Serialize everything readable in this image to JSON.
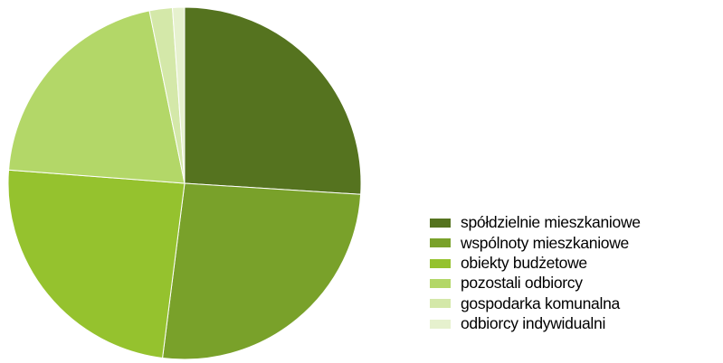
{
  "chart_data": {
    "type": "pie",
    "title": "",
    "legend_position": "right",
    "start_angle_deg": 0,
    "direction": "clockwise",
    "slices": [
      {
        "label": "spółdzielnie mieszkaniowe",
        "value": 26.0,
        "color": "#55731f"
      },
      {
        "label": "wspólnoty mieszkaniowe",
        "value": 26.0,
        "color": "#79a12a"
      },
      {
        "label": "obiekty budżetowe",
        "value": 24.2,
        "color": "#95c22e"
      },
      {
        "label": "pozostali odbiorcy",
        "value": 20.6,
        "color": "#b3d768"
      },
      {
        "label": "gospodarka komunalna",
        "value": 2.1,
        "color": "#d4e8a9"
      },
      {
        "label": "odbiorcy indywidualni",
        "value": 1.1,
        "color": "#e6f1ce"
      }
    ]
  }
}
